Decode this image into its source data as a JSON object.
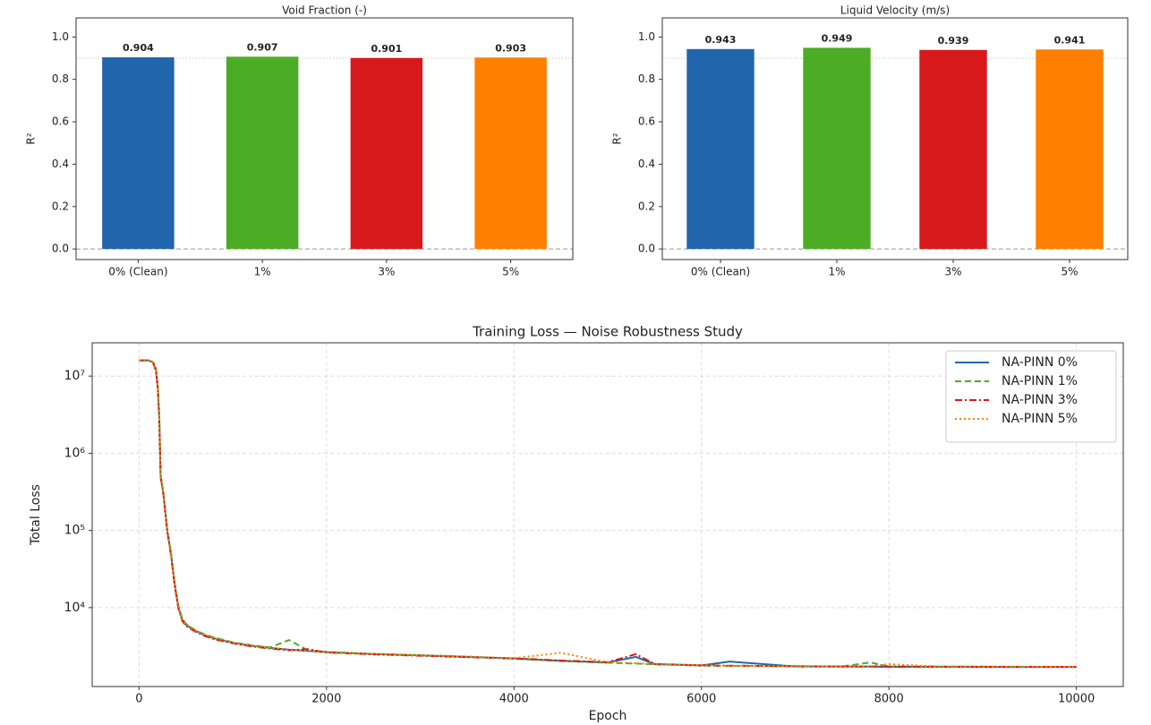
{
  "chart_data": [
    {
      "type": "bar",
      "title": "Void Fraction (-)",
      "ylabel": "R²",
      "categories": [
        "0% (Clean)",
        "1%",
        "3%",
        "5%"
      ],
      "values": [
        0.904,
        0.907,
        0.901,
        0.903
      ],
      "colors": [
        "#2166ac",
        "#4dac26",
        "#d7191c",
        "#ff7f00"
      ],
      "ylim": [
        -0.05,
        1.09
      ],
      "yticks": [
        {
          "value": 0,
          "label": "0.0"
        },
        0.2,
        0.4,
        0.6,
        0.8,
        {
          "value": 1,
          "label": "1.0"
        }
      ],
      "hlines": [
        {
          "value": 0,
          "style": "dashed"
        },
        {
          "value": 0.9,
          "style": "dotted"
        }
      ]
    },
    {
      "type": "bar",
      "title": "Liquid Velocity (m/s)",
      "ylabel": "R²",
      "categories": [
        "0% (Clean)",
        "1%",
        "3%",
        "5%"
      ],
      "values": [
        0.943,
        0.949,
        0.939,
        0.941
      ],
      "colors": [
        "#2166ac",
        "#4dac26",
        "#d7191c",
        "#ff7f00"
      ],
      "ylim": [
        -0.05,
        1.09
      ],
      "yticks": [
        {
          "value": 0,
          "label": "0.0"
        },
        0.2,
        0.4,
        0.6,
        0.8,
        {
          "value": 1,
          "label": "1.0"
        }
      ],
      "hlines": [
        {
          "value": 0,
          "style": "dashed"
        },
        {
          "value": 0.9,
          "style": "dotted"
        }
      ]
    },
    {
      "type": "line",
      "title": "Training Loss — Noise Robustness Study",
      "xlabel": "Epoch",
      "ylabel": "Total Loss",
      "log_y": true,
      "grid": true,
      "legend": "upper right",
      "xlim": [
        -500,
        10500
      ],
      "xticks": [
        0,
        2000,
        4000,
        6000,
        8000,
        10000
      ],
      "ylim": [
        950,
        27000000
      ],
      "yticks": [
        {
          "value": 10000,
          "label": "10⁴"
        },
        {
          "value": 100000,
          "label": "10⁵"
        },
        {
          "value": 1000000,
          "label": "10⁶"
        },
        {
          "value": 10000000,
          "label": "10⁷"
        }
      ],
      "x": [
        0,
        100,
        150,
        180,
        200,
        215,
        230,
        260,
        300,
        340,
        380,
        420,
        460,
        500,
        600,
        700,
        800,
        1000,
        1200,
        1400,
        1600,
        1800,
        2000,
        2500,
        3000,
        3500,
        4000,
        4500,
        5000,
        5300,
        5500,
        6000,
        6300,
        7000,
        7500,
        7800,
        8000,
        8500,
        9000,
        9500,
        10000
      ],
      "series": [
        {
          "name": "NA-PINN 0%",
          "color": "#2166ac",
          "linestyle": "solid",
          "values": [
            16000000,
            16000000,
            15000000,
            12000000,
            7000000,
            3000000,
            500000,
            300000,
            100000,
            50000,
            20000,
            10000,
            7000,
            6000,
            5000,
            4400,
            4000,
            3500,
            3200,
            3000,
            2850,
            2750,
            2650,
            2500,
            2400,
            2300,
            2200,
            2050,
            1950,
            2300,
            1850,
            1780,
            2000,
            1730,
            1720,
            1720,
            1710,
            1710,
            1700,
            1700,
            1700
          ]
        },
        {
          "name": "NA-PINN 1%",
          "color": "#4dac26",
          "linestyle": "dashed",
          "values": [
            16000000,
            16000000,
            15200000,
            12500000,
            7500000,
            3200000,
            520000,
            310000,
            105000,
            52000,
            21000,
            10500,
            7300,
            6200,
            5100,
            4500,
            4100,
            3550,
            3250,
            3050,
            3800,
            2800,
            2680,
            2520,
            2420,
            2320,
            2180,
            2030,
            1930,
            1880,
            1840,
            1770,
            1750,
            1740,
            1730,
            1950,
            1730,
            1720,
            1720,
            1710,
            1710
          ]
        },
        {
          "name": "NA-PINN 3%",
          "color": "#d7191c",
          "linestyle": "dashdot",
          "values": [
            16000000,
            16000000,
            14800000,
            11800000,
            6800000,
            2900000,
            490000,
            290000,
            98000,
            48000,
            19000,
            9800,
            6800,
            5800,
            4900,
            4300,
            3900,
            3450,
            3150,
            2950,
            2800,
            2900,
            2620,
            2480,
            2380,
            2280,
            2200,
            2060,
            1960,
            2500,
            1860,
            1790,
            1770,
            1740,
            1730,
            1730,
            1720,
            1720,
            1710,
            1710,
            1710
          ]
        },
        {
          "name": "NA-PINN 5%",
          "color": "#ff7f00",
          "linestyle": "dotted",
          "values": [
            16000000,
            16000000,
            15100000,
            12200000,
            7200000,
            3100000,
            510000,
            305000,
            102000,
            51000,
            20500,
            10200,
            7100,
            6100,
            5050,
            4450,
            4050,
            3520,
            3220,
            3020,
            2870,
            2770,
            2660,
            2510,
            2410,
            2310,
            2210,
            2600,
            1960,
            1900,
            1850,
            1790,
            1770,
            1740,
            1730,
            1740,
            1850,
            1730,
            1720,
            1720,
            1710
          ]
        }
      ]
    }
  ]
}
